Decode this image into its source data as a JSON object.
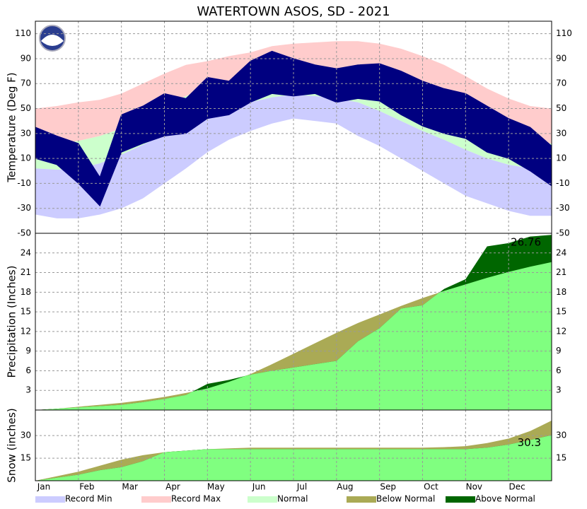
{
  "legend": [
    {
      "name": "Record Min",
      "color": "#ccccff"
    },
    {
      "name": "Record Max",
      "color": "#ffcccc"
    },
    {
      "name": "Normal",
      "color": "#ccffcc"
    },
    {
      "name": "Below Normal",
      "color": "#aaaa55"
    },
    {
      "name": "Above Normal",
      "color": "#006600"
    }
  ],
  "chart_data": [
    {
      "type": "band",
      "title": "WATERTOWN      ASOS, SD - 2021",
      "y_label": "Temperature (Deg F)",
      "ylim": [
        -50,
        120
      ],
      "yticks": [
        -50,
        -30,
        -10,
        10,
        30,
        50,
        70,
        90,
        110
      ],
      "grid": true,
      "series": [
        {
          "name": "Record Max",
          "color": "#ffcccc",
          "low": [
            22,
            22,
            24,
            28,
            34,
            42,
            52,
            60,
            67,
            72,
            77,
            81,
            83,
            83,
            82,
            80,
            75,
            68,
            58,
            50,
            40,
            32,
            26,
            23,
            22
          ],
          "high": [
            50,
            52,
            55,
            57,
            62,
            70,
            78,
            85,
            88,
            92,
            95,
            100,
            102,
            103,
            104,
            104,
            102,
            98,
            92,
            85,
            76,
            66,
            58,
            52,
            50
          ]
        },
        {
          "name": "Normal",
          "color": "#ccffcc",
          "low": [
            2,
            1,
            2,
            6,
            13,
            21,
            29,
            36,
            43,
            50,
            55,
            59,
            61,
            60,
            58,
            55,
            48,
            40,
            32,
            25,
            17,
            10,
            5,
            2,
            1
          ],
          "high": [
            22,
            22,
            24,
            28,
            34,
            42,
            52,
            60,
            67,
            72,
            77,
            81,
            83,
            83,
            82,
            80,
            75,
            68,
            58,
            50,
            40,
            32,
            26,
            23,
            22
          ]
        },
        {
          "name": "Record Min",
          "color": "#ccccff",
          "low": [
            -35,
            -38,
            -38,
            -35,
            -30,
            -22,
            -10,
            2,
            15,
            25,
            32,
            38,
            42,
            40,
            38,
            28,
            20,
            10,
            0,
            -10,
            -20,
            -26,
            -32,
            -36,
            -36
          ],
          "high": [
            2,
            1,
            2,
            6,
            13,
            21,
            29,
            36,
            43,
            50,
            55,
            59,
            61,
            60,
            58,
            55,
            48,
            40,
            32,
            25,
            17,
            10,
            5,
            2,
            1
          ]
        },
        {
          "color": "#000080",
          "low": [
            10,
            5,
            -10,
            -28,
            15,
            22,
            28,
            30,
            42,
            45,
            55,
            62,
            60,
            62,
            55,
            58,
            56,
            45,
            36,
            30,
            26,
            15,
            10,
            0,
            -12
          ],
          "high": [
            35,
            28,
            22,
            -5,
            45,
            52,
            62,
            58,
            75,
            72,
            88,
            96,
            90,
            85,
            82,
            85,
            86,
            80,
            72,
            66,
            62,
            52,
            42,
            35,
            20
          ]
        }
      ]
    },
    {
      "type": "cumulative",
      "y_label": "Precipitation (Inches)",
      "annotation": "26.76",
      "ylim": [
        0,
        27
      ],
      "yticks": [
        3,
        6,
        9,
        12,
        15,
        18,
        21,
        24
      ],
      "grid": true,
      "normal": {
        "color": "#aaaa55",
        "values": [
          0,
          0.2,
          0.5,
          0.8,
          1.1,
          1.5,
          2.0,
          2.6,
          3.3,
          4.3,
          5.5,
          7.0,
          8.6,
          10.2,
          11.8,
          13.3,
          14.6,
          15.9,
          17.1,
          18.2,
          19.2,
          20.2,
          21.1,
          21.9,
          22.6
        ]
      },
      "observed": {
        "color": "#80ff80",
        "above_color": "#006600",
        "values": [
          0,
          0.2,
          0.4,
          0.6,
          0.8,
          1.2,
          1.7,
          2.3,
          4.0,
          4.6,
          5.4,
          6.0,
          6.5,
          7.0,
          7.5,
          10.5,
          12.5,
          15.5,
          16.0,
          18.5,
          20.0,
          25.0,
          25.5,
          26.5,
          26.76
        ]
      }
    },
    {
      "type": "cumulative",
      "y_label": "Snow (inches)",
      "annotation": "30.3",
      "ylim": [
        0,
        47
      ],
      "yticks": [
        15,
        30
      ],
      "grid": true,
      "categories": [
        "Jan",
        null,
        "Feb",
        null,
        "Mar",
        null,
        "Apr",
        null,
        "May",
        null,
        "Jun",
        null,
        "Jul",
        null,
        "Aug",
        null,
        "Sep",
        null,
        "Oct",
        null,
        "Nov",
        null,
        "Dec",
        null,
        null
      ],
      "normal": {
        "color": "#aaaa55",
        "values": [
          0,
          3,
          6,
          10,
          14,
          17,
          19,
          20,
          21,
          21.5,
          22,
          22,
          22,
          22,
          22,
          22,
          22,
          22,
          22,
          22.3,
          23,
          25,
          28,
          33,
          40
        ]
      },
      "observed": {
        "color": "#80ff80",
        "above_color": "#006600",
        "values": [
          0,
          2,
          4,
          7,
          9,
          13,
          19,
          20,
          21,
          21,
          21,
          21,
          21,
          21,
          21,
          21,
          21,
          21,
          21,
          21,
          21,
          22,
          24,
          27,
          30.3
        ]
      }
    }
  ]
}
